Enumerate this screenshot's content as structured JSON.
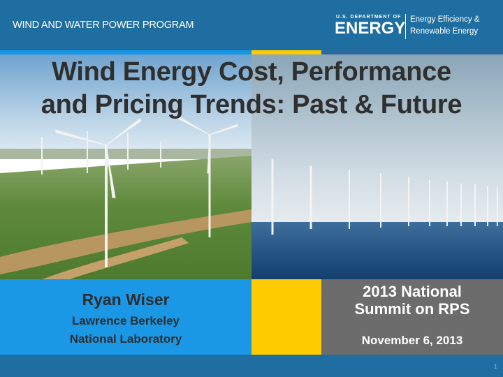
{
  "header": {
    "program": "WIND AND WATER POWER PROGRAM",
    "doe_small": "U.S. DEPARTMENT OF",
    "doe_big": "ENERGY",
    "doe_office_line1": "Energy Efficiency &",
    "doe_office_line2": "Renewable Energy"
  },
  "title": {
    "line1": "Wind Energy Cost, Performance",
    "line2": "and Pricing Trends: Past & Future"
  },
  "presenter": {
    "name": "Ryan Wiser",
    "org_line1": "Lawrence Berkeley",
    "org_line2": "National Laboratory"
  },
  "event": {
    "line1": "2013 National",
    "line2": "Summit on RPS",
    "date": "November 6, 2013"
  },
  "page_number": "1",
  "colors": {
    "header_blue": "#1f6ea1",
    "accent_blue": "#1a98e6",
    "accent_yellow": "#ffcc00",
    "panel_gray": "#6c6c6c"
  }
}
